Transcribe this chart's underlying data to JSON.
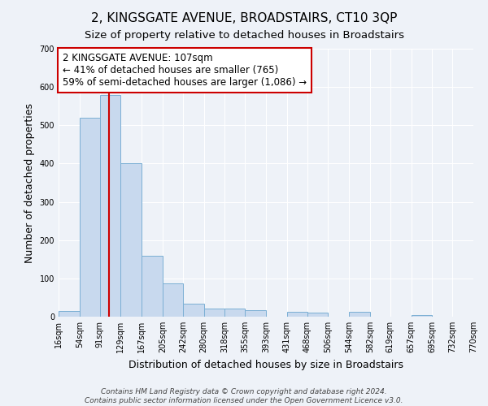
{
  "title": "2, KINGSGATE AVENUE, BROADSTAIRS, CT10 3QP",
  "subtitle": "Size of property relative to detached houses in Broadstairs",
  "xlabel": "Distribution of detached houses by size in Broadstairs",
  "ylabel": "Number of detached properties",
  "bar_color": "#c8d9ee",
  "bar_edge_color": "#7bafd4",
  "background_color": "#eef2f8",
  "grid_color": "#ffffff",
  "ylim": [
    0,
    700
  ],
  "yticks": [
    0,
    100,
    200,
    300,
    400,
    500,
    600,
    700
  ],
  "bin_edges": [
    16,
    54,
    91,
    129,
    167,
    205,
    242,
    280,
    318,
    355,
    393,
    431,
    468,
    506,
    544,
    582,
    619,
    657,
    695,
    732,
    770
  ],
  "bar_heights": [
    15,
    520,
    580,
    400,
    160,
    87,
    33,
    22,
    22,
    17,
    0,
    12,
    10,
    0,
    13,
    0,
    0,
    5,
    0,
    0
  ],
  "tick_labels": [
    "16sqm",
    "54sqm",
    "91sqm",
    "129sqm",
    "167sqm",
    "205sqm",
    "242sqm",
    "280sqm",
    "318sqm",
    "355sqm",
    "393sqm",
    "431sqm",
    "468sqm",
    "506sqm",
    "544sqm",
    "582sqm",
    "619sqm",
    "657sqm",
    "695sqm",
    "732sqm",
    "770sqm"
  ],
  "property_size": 107,
  "vline_color": "#cc0000",
  "annotation_line1": "2 KINGSGATE AVENUE: 107sqm",
  "annotation_line2": "← 41% of detached houses are smaller (765)",
  "annotation_line3": "59% of semi-detached houses are larger (1,086) →",
  "annotation_box_color": "#ffffff",
  "annotation_box_edge": "#cc0000",
  "footer_line1": "Contains HM Land Registry data © Crown copyright and database right 2024.",
  "footer_line2": "Contains public sector information licensed under the Open Government Licence v3.0.",
  "title_fontsize": 11,
  "subtitle_fontsize": 9.5,
  "axis_label_fontsize": 9,
  "tick_fontsize": 7,
  "annotation_fontsize": 8.5,
  "footer_fontsize": 6.5
}
